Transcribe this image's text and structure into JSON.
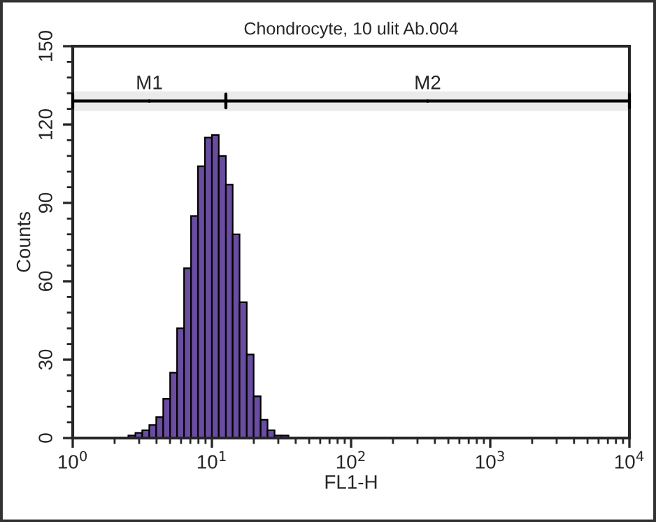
{
  "chart_data": {
    "type": "histogram",
    "title": "Chondrocyte, 10 ulit Ab.004",
    "xlabel": "FL1-H",
    "ylabel": "Counts",
    "log": "x",
    "color": "#6a4ca0",
    "bins": [
      2.51,
      2.82,
      3.16,
      3.55,
      3.98,
      4.47,
      5.01,
      5.62,
      6.31,
      7.08,
      7.94,
      8.91,
      10,
      11.2,
      12.6,
      14.1,
      15.8,
      17.8,
      19.95,
      22.4,
      25.1,
      28.2,
      31.6,
      35.5
    ],
    "values": [
      1,
      2,
      3,
      5,
      8,
      15,
      25,
      42,
      65,
      85,
      104,
      115,
      116,
      108,
      97,
      78,
      52,
      32,
      16,
      7,
      3,
      1,
      1
    ],
    "xlim": [
      1,
      10000
    ],
    "xticks": [
      {
        "value": 1,
        "label": "10$^{0}$"
      },
      {
        "value": 10,
        "label": "10$^{1}$"
      },
      {
        "value": 100,
        "label": "10$^{2}$"
      },
      {
        "value": 1000,
        "label": "10$^{3}$"
      },
      {
        "value": 10000,
        "label": "10$^{4}$"
      }
    ],
    "ylim": [
      0,
      150
    ],
    "yticks": [
      0,
      30,
      60,
      90,
      120,
      150
    ],
    "grid": false,
    "bands": [
      {
        "axis": "x",
        "from": 1,
        "to": 12.6,
        "label": "M1"
      },
      {
        "axis": "x",
        "from": 12.6,
        "to": 10000,
        "label": "M2"
      }
    ]
  }
}
